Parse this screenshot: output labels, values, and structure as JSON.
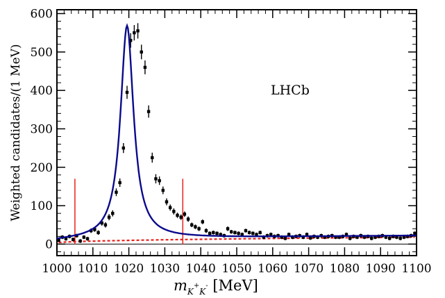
{
  "chart_data": {
    "type": "scatter",
    "title": "",
    "annotation": "LHCb",
    "xlabel": {
      "var": "m",
      "sub": "K",
      "sup1": "+",
      "sub2": "K",
      "sup2": "-",
      "unit": " [MeV]"
    },
    "ylabel": "Weighted candidates/(1 MeV)",
    "xlim": [
      1000,
      1100
    ],
    "ylim": [
      -30,
      610
    ],
    "xticks": [
      1000,
      1010,
      1020,
      1030,
      1040,
      1050,
      1060,
      1070,
      1080,
      1090,
      1100
    ],
    "yticks": [
      0,
      100,
      200,
      300,
      400,
      500,
      600
    ],
    "x": [
      1000.5,
      1001.5,
      1002.5,
      1003.5,
      1004.5,
      1005.5,
      1006.5,
      1007.5,
      1008.5,
      1009.5,
      1010.5,
      1011.5,
      1012.5,
      1013.5,
      1014.5,
      1015.5,
      1016.5,
      1017.5,
      1018.5,
      1019.5,
      1020.5,
      1021.5,
      1022.5,
      1023.5,
      1024.5,
      1025.5,
      1026.5,
      1027.5,
      1028.5,
      1029.5,
      1030.5,
      1031.5,
      1032.5,
      1033.5,
      1034.5,
      1035.5,
      1036.5,
      1037.5,
      1038.5,
      1039.5,
      1040.5,
      1041.5,
      1042.5,
      1043.5,
      1044.5,
      1045.5,
      1046.5,
      1047.5,
      1048.5,
      1049.5,
      1050.5,
      1051.5,
      1052.5,
      1053.5,
      1054.5,
      1055.5,
      1056.5,
      1057.5,
      1058.5,
      1059.5,
      1060.5,
      1061.5,
      1062.5,
      1063.5,
      1064.5,
      1065.5,
      1066.5,
      1067.5,
      1068.5,
      1069.5,
      1070.5,
      1071.5,
      1072.5,
      1073.5,
      1074.5,
      1075.5,
      1076.5,
      1077.5,
      1078.5,
      1079.5,
      1080.5,
      1081.5,
      1082.5,
      1083.5,
      1084.5,
      1085.5,
      1086.5,
      1087.5,
      1088.5,
      1089.5,
      1090.5,
      1091.5,
      1092.5,
      1093.5,
      1094.5,
      1095.5,
      1096.5,
      1097.5,
      1098.5,
      1099.5
    ],
    "series": [
      {
        "kind": "data",
        "y": [
          10,
          18,
          14,
          20,
          12,
          22,
          8,
          18,
          14,
          35,
          38,
          30,
          55,
          50,
          70,
          80,
          135,
          160,
          250,
          395,
          530,
          550,
          555,
          500,
          460,
          345,
          225,
          170,
          165,
          140,
          110,
          95,
          85,
          75,
          70,
          78,
          65,
          50,
          45,
          40,
          58,
          35,
          28,
          30,
          28,
          25,
          22,
          40,
          32,
          30,
          28,
          25,
          35,
          30,
          28,
          25,
          30,
          18,
          22,
          25,
          20,
          22,
          18,
          15,
          25,
          18,
          20,
          22,
          18,
          25,
          16,
          20,
          18,
          22,
          18,
          20,
          22,
          18,
          18,
          20,
          25,
          15,
          20,
          18,
          22,
          18,
          20,
          15,
          18,
          20,
          22,
          18,
          15,
          20,
          18,
          15,
          18,
          20,
          22,
          28
        ],
        "err": [
          5,
          5,
          5,
          5,
          5,
          5,
          5,
          5,
          5,
          6,
          6,
          6,
          7,
          7,
          8,
          8,
          10,
          11,
          13,
          17,
          19,
          20,
          20,
          19,
          18,
          16,
          13,
          12,
          11,
          10,
          9,
          8,
          8,
          7,
          7,
          7,
          7,
          6,
          6,
          6,
          6,
          6,
          5,
          5,
          5,
          5,
          5,
          6,
          5,
          5,
          5,
          5,
          5,
          5,
          5,
          5,
          5,
          5,
          5,
          5,
          5,
          5,
          5,
          5,
          5,
          5,
          5,
          5,
          5,
          5,
          5,
          5,
          5,
          5,
          5,
          5,
          5,
          5,
          5,
          5,
          5,
          5,
          5,
          5,
          5,
          5,
          5,
          5,
          5,
          5,
          5,
          5,
          5,
          5,
          5,
          5,
          5,
          5,
          5,
          5
        ]
      },
      {
        "kind": "fit",
        "color": "#0a0a8c",
        "peak": 1019.5,
        "amplitude": 555,
        "gamma": 2.2,
        "base": 10
      },
      {
        "kind": "background",
        "color": "#e8201a",
        "y0": 3,
        "y1": 18
      }
    ],
    "markers": [
      {
        "x": 1005,
        "y": 170,
        "color": "#e8201a"
      },
      {
        "x": 1035,
        "y": 170,
        "color": "#e8201a"
      }
    ],
    "grid": false
  }
}
